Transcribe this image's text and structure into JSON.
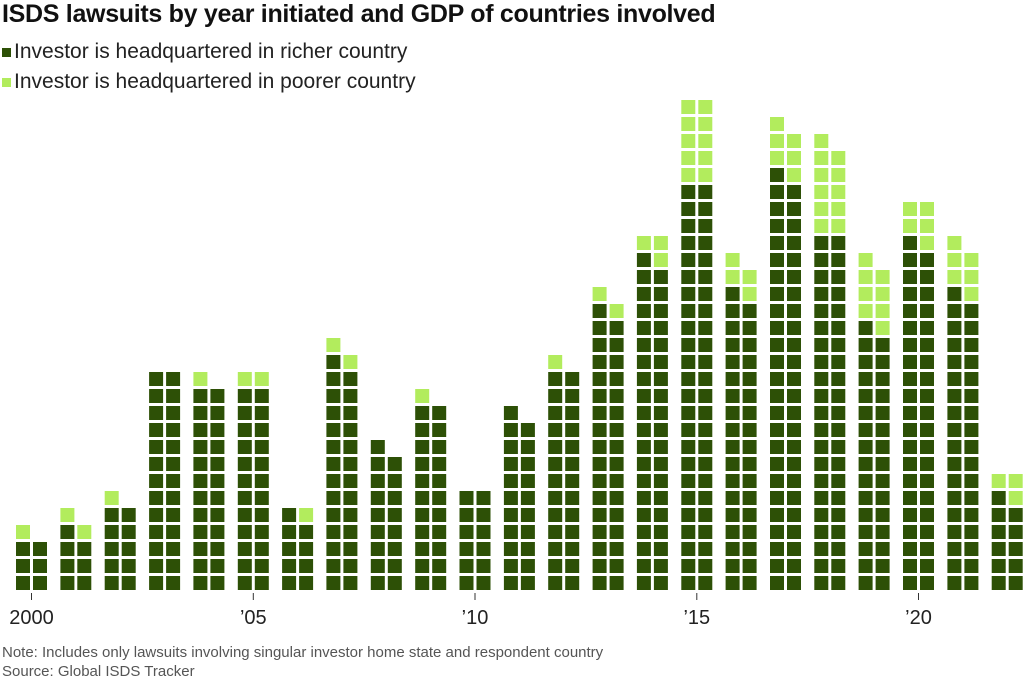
{
  "title": "ISDS lawsuits by year initiated and GDP of countries involved",
  "legend": [
    {
      "label": "Investor is headquartered in richer country",
      "color": "#2d5006"
    },
    {
      "label": "Investor is headquartered in poorer country",
      "color": "#b2ec5d"
    }
  ],
  "note": "Note: Includes only lawsuits involving singular investor home state and respondent country",
  "source": "Source: Global ISDS Tracker",
  "chart_data": {
    "type": "waffle-column",
    "unit": "one square = one lawsuit",
    "series": [
      {
        "name": "Investor is headquartered in richer country",
        "color": "#2d5006"
      },
      {
        "name": "Investor is headquartered in poorer country",
        "color": "#b2ec5d"
      }
    ],
    "x_tick_labels": [
      {
        "year": 2000,
        "label": "2000"
      },
      {
        "year": 2005,
        "label": "’05"
      },
      {
        "year": 2010,
        "label": "’10"
      },
      {
        "year": 2015,
        "label": "’15"
      },
      {
        "year": 2020,
        "label": "’20"
      }
    ],
    "years": [
      {
        "year": 2000,
        "columns": [
          {
            "rich": 3,
            "poor": 1
          },
          {
            "rich": 3,
            "poor": 0
          }
        ]
      },
      {
        "year": 2001,
        "columns": [
          {
            "rich": 4,
            "poor": 1
          },
          {
            "rich": 3,
            "poor": 1
          }
        ]
      },
      {
        "year": 2002,
        "columns": [
          {
            "rich": 5,
            "poor": 1
          },
          {
            "rich": 5,
            "poor": 0
          }
        ]
      },
      {
        "year": 2003,
        "columns": [
          {
            "rich": 13,
            "poor": 0
          },
          {
            "rich": 13,
            "poor": 0
          }
        ]
      },
      {
        "year": 2004,
        "columns": [
          {
            "rich": 12,
            "poor": 1
          },
          {
            "rich": 12,
            "poor": 0
          }
        ]
      },
      {
        "year": 2005,
        "columns": [
          {
            "rich": 12,
            "poor": 1
          },
          {
            "rich": 12,
            "poor": 1
          }
        ]
      },
      {
        "year": 2006,
        "columns": [
          {
            "rich": 5,
            "poor": 0
          },
          {
            "rich": 4,
            "poor": 1
          }
        ]
      },
      {
        "year": 2007,
        "columns": [
          {
            "rich": 14,
            "poor": 1
          },
          {
            "rich": 13,
            "poor": 1
          }
        ]
      },
      {
        "year": 2008,
        "columns": [
          {
            "rich": 9,
            "poor": 0
          },
          {
            "rich": 8,
            "poor": 0
          }
        ]
      },
      {
        "year": 2009,
        "columns": [
          {
            "rich": 11,
            "poor": 1
          },
          {
            "rich": 11,
            "poor": 0
          }
        ]
      },
      {
        "year": 2010,
        "columns": [
          {
            "rich": 6,
            "poor": 0
          },
          {
            "rich": 6,
            "poor": 0
          }
        ]
      },
      {
        "year": 2011,
        "columns": [
          {
            "rich": 11,
            "poor": 0
          },
          {
            "rich": 10,
            "poor": 0
          }
        ]
      },
      {
        "year": 2012,
        "columns": [
          {
            "rich": 13,
            "poor": 1
          },
          {
            "rich": 13,
            "poor": 0
          }
        ]
      },
      {
        "year": 2013,
        "columns": [
          {
            "rich": 17,
            "poor": 1
          },
          {
            "rich": 16,
            "poor": 1
          }
        ]
      },
      {
        "year": 2014,
        "columns": [
          {
            "rich": 20,
            "poor": 1
          },
          {
            "rich": 19,
            "poor": 2
          }
        ]
      },
      {
        "year": 2015,
        "columns": [
          {
            "rich": 24,
            "poor": 5
          },
          {
            "rich": 24,
            "poor": 5
          }
        ]
      },
      {
        "year": 2016,
        "columns": [
          {
            "rich": 18,
            "poor": 2
          },
          {
            "rich": 17,
            "poor": 2
          }
        ]
      },
      {
        "year": 2017,
        "columns": [
          {
            "rich": 25,
            "poor": 3
          },
          {
            "rich": 24,
            "poor": 3
          }
        ]
      },
      {
        "year": 2018,
        "columns": [
          {
            "rich": 21,
            "poor": 6
          },
          {
            "rich": 21,
            "poor": 5
          }
        ]
      },
      {
        "year": 2019,
        "columns": [
          {
            "rich": 16,
            "poor": 4
          },
          {
            "rich": 15,
            "poor": 4
          }
        ]
      },
      {
        "year": 2020,
        "columns": [
          {
            "rich": 21,
            "poor": 2
          },
          {
            "rich": 20,
            "poor": 3
          }
        ]
      },
      {
        "year": 2021,
        "columns": [
          {
            "rich": 18,
            "poor": 3
          },
          {
            "rich": 17,
            "poor": 3
          }
        ]
      },
      {
        "year": 2022,
        "columns": [
          {
            "rich": 6,
            "poor": 1
          },
          {
            "rich": 5,
            "poor": 2
          }
        ]
      }
    ]
  }
}
